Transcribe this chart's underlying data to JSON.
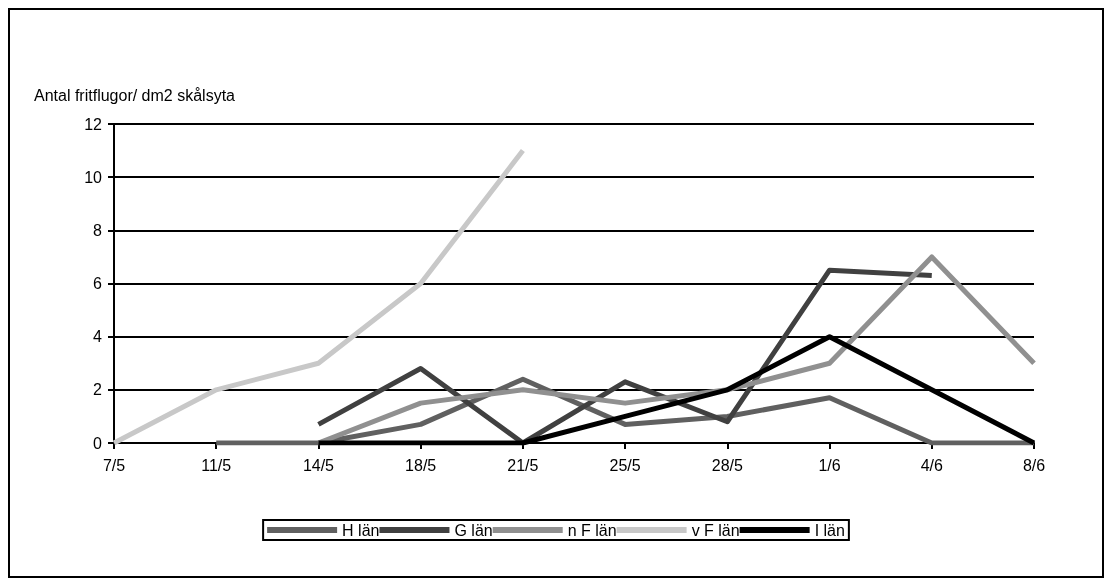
{
  "chart_data": {
    "type": "line",
    "ylabel": "Antal fritflugor/ dm2 skålsyta",
    "categories": [
      "7/5",
      "11/5",
      "14/5",
      "18/5",
      "21/5",
      "25/5",
      "28/5",
      "1/6",
      "4/6",
      "8/6"
    ],
    "ylim": [
      0,
      12
    ],
    "yticks": [
      0,
      2,
      4,
      6,
      8,
      10,
      12
    ],
    "grid": "y",
    "legend": "bottom",
    "marker": "none",
    "line_style": "solid",
    "series": [
      {
        "name": "H län",
        "color": "#606060",
        "values": [
          null,
          0,
          0,
          0.7,
          2.4,
          0.7,
          1,
          1.7,
          0,
          0
        ]
      },
      {
        "name": "G län",
        "color": "#404040",
        "values": [
          null,
          null,
          0.7,
          2.8,
          0,
          2.3,
          0.8,
          6.5,
          6.3,
          null
        ]
      },
      {
        "name": "n F län",
        "color": "#909090",
        "values": [
          null,
          null,
          0,
          1.5,
          2,
          1.5,
          2,
          3,
          7,
          3
        ]
      },
      {
        "name": "v F län",
        "color": "#c8c8c8",
        "values": [
          0,
          2,
          3,
          6,
          11,
          null,
          null,
          null,
          null,
          null
        ]
      },
      {
        "name": "I län",
        "color": "#000000",
        "values": [
          null,
          null,
          0,
          0,
          0,
          1,
          2,
          4,
          2,
          0
        ]
      }
    ]
  }
}
